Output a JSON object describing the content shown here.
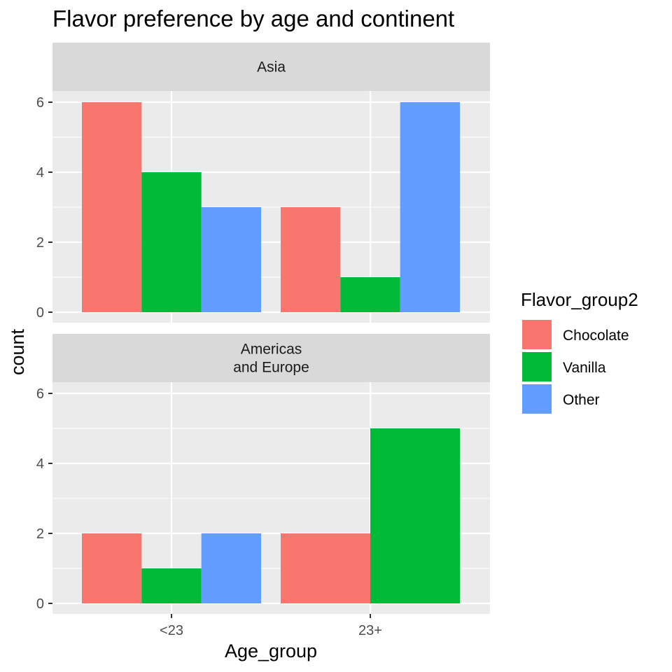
{
  "chart_data": {
    "type": "bar",
    "title": "Flavor preference by age and continent",
    "xlabel": "Age_group",
    "ylabel": "count",
    "categories": [
      "<23",
      "23+"
    ],
    "ylim": [
      0,
      6
    ],
    "yticks": [
      0,
      2,
      4,
      6
    ],
    "grid": true,
    "legend": {
      "title": "Flavor_group2",
      "position": "right",
      "entries": [
        {
          "name": "Chocolate",
          "color": "#F8766D"
        },
        {
          "name": "Vanilla",
          "color": "#00BA38"
        },
        {
          "name": "Other",
          "color": "#619CFF"
        }
      ]
    },
    "panels": [
      {
        "strip": [
          "Asia"
        ],
        "bars": [
          {
            "category": "<23",
            "values": [
              {
                "series": "Chocolate",
                "value": 6
              },
              {
                "series": "Vanilla",
                "value": 4
              },
              {
                "series": "Other",
                "value": 3
              }
            ]
          },
          {
            "category": "23+",
            "values": [
              {
                "series": "Chocolate",
                "value": 3
              },
              {
                "series": "Vanilla",
                "value": 1
              },
              {
                "series": "Other",
                "value": 6
              }
            ]
          }
        ]
      },
      {
        "strip": [
          "Americas",
          "and Europe"
        ],
        "bars": [
          {
            "category": "<23",
            "values": [
              {
                "series": "Chocolate",
                "value": 2
              },
              {
                "series": "Vanilla",
                "value": 1
              },
              {
                "series": "Other",
                "value": 2
              }
            ]
          },
          {
            "category": "23+",
            "values": [
              {
                "series": "Chocolate",
                "value": 2
              },
              {
                "series": "Vanilla",
                "value": 5
              }
            ]
          }
        ]
      }
    ]
  }
}
